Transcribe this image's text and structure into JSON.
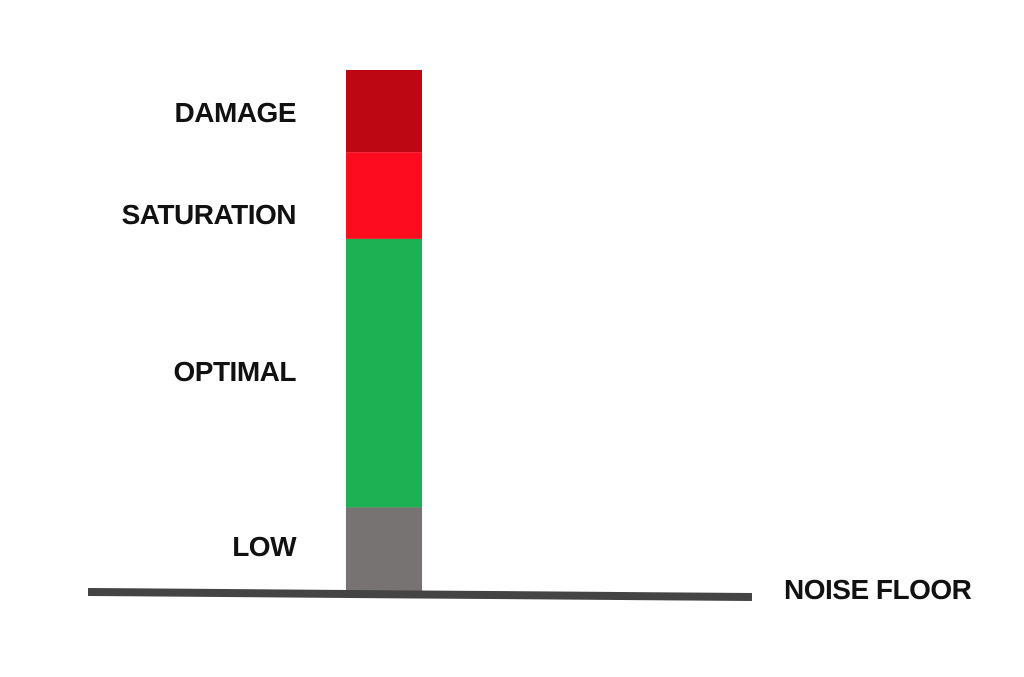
{
  "diagram": {
    "zones": [
      {
        "id": "damage",
        "label": "DAMAGE",
        "color": "#BD0712",
        "level_from": 0.8421,
        "level_to": 1.0
      },
      {
        "id": "saturation",
        "label": "SATURATION",
        "color": "#FC0C1E",
        "level_from": 0.6758,
        "level_to": 0.8421
      },
      {
        "id": "optimal",
        "label": "OPTIMAL",
        "color": "#1DB153",
        "level_from": 0.1604,
        "level_to": 0.6758
      },
      {
        "id": "low",
        "label": "LOW",
        "color": "#777372",
        "level_from": 0.0,
        "level_to": 0.1604
      }
    ],
    "noise_floor": {
      "label": "NOISE FLOOR",
      "color": "#444444"
    }
  }
}
